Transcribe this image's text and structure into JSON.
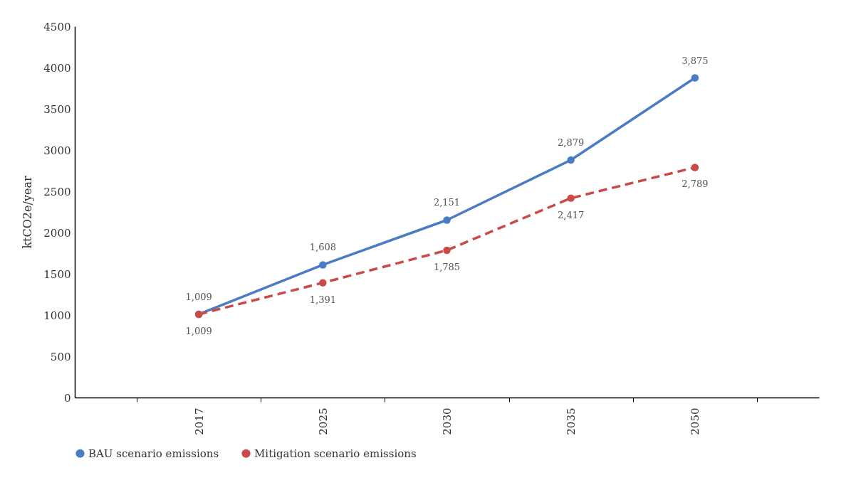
{
  "chart_data": {
    "type": "line",
    "ylabel": "ktCO2e/year",
    "categories": [
      "2017",
      "2025",
      "2030",
      "2035",
      "2050"
    ],
    "series": [
      {
        "name": "BAU scenario emissions",
        "color": "#4a7cc4",
        "values": [
          1009,
          1608,
          2151,
          2879,
          3875
        ],
        "value_labels": [
          "1,009",
          "1,608",
          "2,151",
          "2,879",
          "3,875"
        ],
        "line_style": "solid"
      },
      {
        "name": "Mitigation scenario emissions",
        "color": "#c94a48",
        "values": [
          1009,
          1391,
          1785,
          2417,
          2789
        ],
        "value_labels": [
          "1,009",
          "1,391",
          "1,785",
          "2,417",
          "2,789"
        ],
        "line_style": "dashed"
      }
    ],
    "ylim": [
      0,
      4500
    ],
    "yticks": [
      0,
      500,
      1000,
      1500,
      2000,
      2500,
      3000,
      3500,
      4000,
      4500
    ],
    "grid": false,
    "legend": "bottom",
    "marker": "circle"
  }
}
